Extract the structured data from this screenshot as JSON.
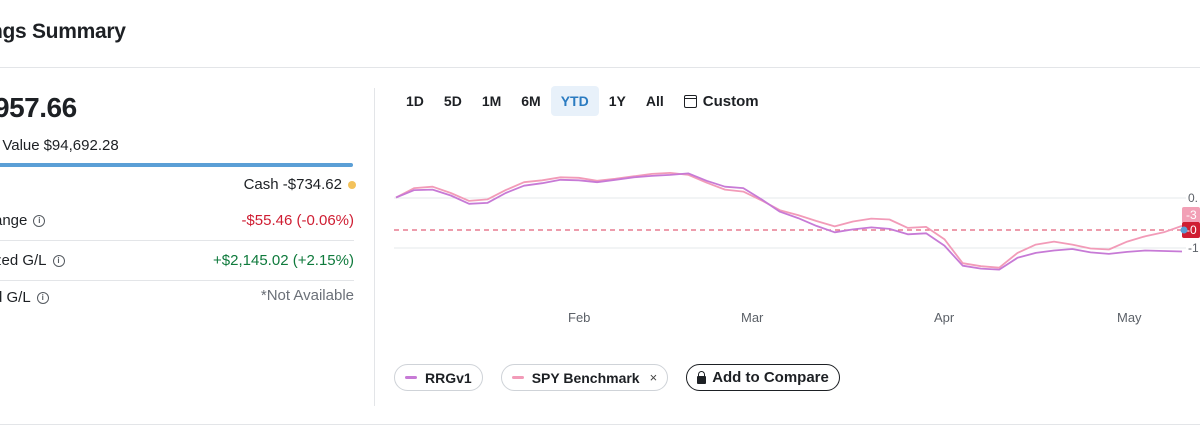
{
  "header": {
    "title": "ngs Summary"
  },
  "summary": {
    "total_value": "957.66",
    "net_value_label": "t Value",
    "net_value_amount": "$94,692.28",
    "cash_text": "Cash -$734.62",
    "rows": [
      {
        "label": "ange",
        "value": "-$55.46 (-0.06%)",
        "tone": "neg"
      },
      {
        "label": "zed G/L",
        "value": "+$2,145.02 (+2.15%)",
        "tone": "pos"
      },
      {
        "label": "d G/L",
        "value": "*Not Available",
        "tone": "na"
      }
    ],
    "colors": {
      "allocation_bar": "#5b9fd6",
      "cash_dot": "#f3c25b",
      "negative": "#cf1d32",
      "positive": "#0f7a3c"
    }
  },
  "range_tabs": {
    "items": [
      "1D",
      "5D",
      "1M",
      "6M",
      "YTD",
      "1Y",
      "All"
    ],
    "active": "YTD",
    "custom_label": "Custom"
  },
  "chart_data": {
    "type": "line",
    "x_labels": [
      "Feb",
      "Mar",
      "Apr",
      "May"
    ],
    "y_ticks": [
      "0.",
      "-1"
    ],
    "end_badges": [
      "-3",
      "-0"
    ],
    "reference_line": "dashed",
    "series": [
      {
        "name": "RRGv1",
        "color": "#c77ad6",
        "values": [
          0,
          1.5,
          1.6,
          0.4,
          -1.3,
          -1.1,
          0.9,
          2.4,
          2.9,
          3.6,
          3.5,
          3.1,
          3.6,
          4.1,
          4.4,
          4.6,
          4.9,
          3.4,
          2.2,
          1.9,
          -0.4,
          -2.9,
          -4.2,
          -5.8,
          -7.1,
          -6.5,
          -6.1,
          -6.4,
          -7.5,
          -7.3,
          -9.8,
          -13.9,
          -14.5,
          -14.7,
          -12.3,
          -11.3,
          -10.8,
          -10.5,
          -11.2,
          -11.5,
          -11.1,
          -10.8,
          -10.9,
          -11.0
        ]
      },
      {
        "name": "SPY Benchmark",
        "color": "#f29bb8",
        "values": [
          0,
          1.9,
          2.2,
          0.9,
          -0.7,
          -0.4,
          1.5,
          3.1,
          3.5,
          4.1,
          4.0,
          3.4,
          3.8,
          4.3,
          4.8,
          5.0,
          4.6,
          3.0,
          1.6,
          1.2,
          -0.6,
          -2.6,
          -3.6,
          -4.8,
          -5.9,
          -4.9,
          -4.3,
          -4.5,
          -6.2,
          -6.0,
          -8.5,
          -13.4,
          -14.0,
          -14.3,
          -11.3,
          -9.6,
          -9.0,
          -9.6,
          -10.4,
          -10.6,
          -9.0,
          -7.9,
          -7.1,
          -5.8
        ]
      }
    ]
  },
  "legend": {
    "items": [
      {
        "label": "RRGv1",
        "color": "#c77ad6",
        "removable": false
      },
      {
        "label": "SPY Benchmark",
        "color": "#f29bb8",
        "removable": true,
        "remove_glyph": "×"
      }
    ],
    "add_compare_label": "Add to Compare"
  }
}
